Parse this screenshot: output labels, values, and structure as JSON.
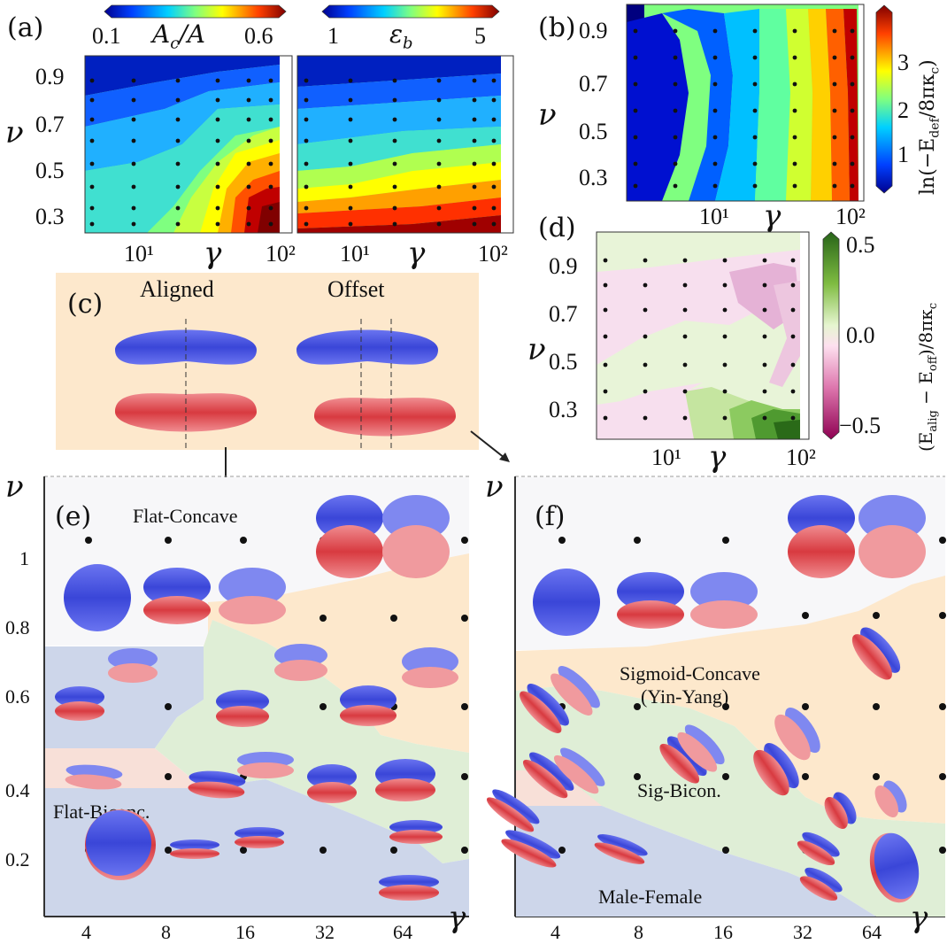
{
  "panels": {
    "a": {
      "label": "(a)"
    },
    "b": {
      "label": "(b)"
    },
    "c": {
      "label": "(c)",
      "aligned": "Aligned",
      "offset": "Offset"
    },
    "d": {
      "label": "(d)"
    },
    "e": {
      "label": "(e)"
    },
    "f": {
      "label": "(f)"
    }
  },
  "colorbars": {
    "a1": {
      "min": "0.1",
      "max": "0.6",
      "name": "A_c / A"
    },
    "a2": {
      "min": "1",
      "max": "5",
      "name": "ε_b"
    },
    "b": {
      "ticks": [
        "1",
        "2",
        "3"
      ],
      "name": "ln(−E_def / 8πκ_c)"
    },
    "d": {
      "ticks": [
        "0.5",
        "0.0",
        "−0.5"
      ],
      "name": "(E_alig − E_off) / 8πκ_c"
    }
  },
  "axes": {
    "nu": "ν",
    "gamma": "γ",
    "contour_y_ticks": [
      "0.9",
      "0.7",
      "0.5",
      "0.3"
    ],
    "contour_x_ticks": [
      "10¹",
      "10²"
    ],
    "phase_y_ticks": [
      "1",
      "0.8",
      "0.6",
      "0.4",
      "0.2"
    ],
    "phase_x_ticks": [
      "4",
      "8",
      "16",
      "32",
      "64"
    ]
  },
  "regions": {
    "e": {
      "flat_concave": "Flat-Concave",
      "flat_biconc": "Flat-Biconc."
    },
    "f": {
      "sigmoid_concave": "Sigmoid-Concave",
      "yin_yang": "(Yin-Yang)",
      "sig_bicon": "Sig-Bicon.",
      "male_female": "Male-Female"
    }
  },
  "colors": {
    "blue_vesicle": "#4a56e8",
    "red_vesicle": "#e8454a",
    "peach_bg": "#fde8cc",
    "flat_concave_bg": "#f6f6f8",
    "bluegray_bg": "#cdd6ea",
    "green_bg": "#dfeed6",
    "pink_bg": "#f8e0d8"
  }
}
